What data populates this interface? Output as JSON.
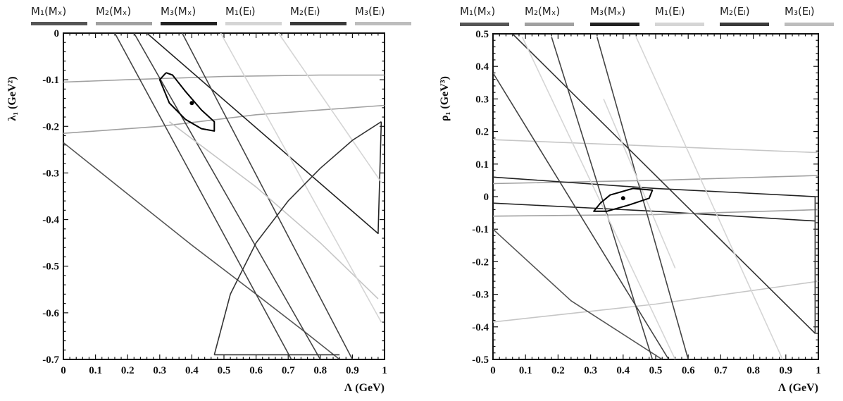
{
  "chart_data": [
    {
      "type": "line",
      "panel": "left",
      "xlabel": "Λ (GeV)",
      "ylabel": "λ₁ (GeV²)",
      "xlim": [
        0,
        1
      ],
      "ylim": [
        -0.7,
        0
      ],
      "xticks": [
        "0",
        "0.1",
        "0.2",
        "0.3",
        "0.4",
        "0.5",
        "0.6",
        "0.7",
        "0.8",
        "0.9",
        "1"
      ],
      "xtick_values": [
        0,
        0.1,
        0.2,
        0.3,
        0.4,
        0.5,
        0.6,
        0.7,
        0.8,
        0.9,
        1
      ],
      "yticks": [
        "0",
        "-0.1",
        "-0.2",
        "-0.3",
        "-0.4",
        "-0.5",
        "-0.6",
        "-0.7"
      ],
      "ytick_values": [
        0,
        -0.1,
        -0.2,
        -0.3,
        -0.4,
        -0.5,
        -0.6,
        -0.7
      ],
      "grid": false,
      "legend": [
        {
          "label": "M₁(Mₓ)",
          "color": "#555555"
        },
        {
          "label": "M₂(Mₓ)",
          "color": "#a0a0a0"
        },
        {
          "label": "M₃(Mₓ)",
          "color": "#222222"
        },
        {
          "label": "M₁(Eₗ)",
          "color": "#d5d5d5"
        },
        {
          "label": "M₂(Eₗ)",
          "color": "#3a3a3a"
        },
        {
          "label": "M₃(Eₗ)",
          "color": "#bdbdbd"
        }
      ],
      "central_point": {
        "x": 0.4,
        "y": -0.15
      },
      "ellipse": [
        [
          0.32,
          -0.085
        ],
        [
          0.3,
          -0.1
        ],
        [
          0.33,
          -0.15
        ],
        [
          0.38,
          -0.185
        ],
        [
          0.43,
          -0.205
        ],
        [
          0.47,
          -0.21
        ],
        [
          0.47,
          -0.19
        ],
        [
          0.43,
          -0.165
        ],
        [
          0.38,
          -0.125
        ],
        [
          0.34,
          -0.09
        ],
        [
          0.32,
          -0.085
        ]
      ],
      "series": [
        {
          "color": "#a0a0a0",
          "points": [
            [
              0,
              -0.105
            ],
            [
              0.2,
              -0.1
            ],
            [
              0.5,
              -0.093
            ],
            [
              0.8,
              -0.09
            ],
            [
              1,
              -0.09
            ]
          ]
        },
        {
          "color": "#a0a0a0",
          "points": [
            [
              0,
              -0.215
            ],
            [
              0.3,
              -0.2
            ],
            [
              0.6,
              -0.175
            ],
            [
              0.8,
              -0.165
            ],
            [
              1,
              -0.155
            ]
          ]
        },
        {
          "color": "#555555",
          "points": [
            [
              0,
              -0.235
            ],
            [
              0.2,
              -0.345
            ],
            [
              0.4,
              -0.455
            ],
            [
              0.6,
              -0.56
            ],
            [
              0.75,
              -0.64
            ],
            [
              0.86,
              -0.7
            ]
          ]
        },
        {
          "color": "#444444",
          "points": [
            [
              0.22,
              0
            ],
            [
              0.8,
              -0.7
            ]
          ]
        },
        {
          "color": "#444444",
          "points": [
            [
              0.16,
              0
            ],
            [
              0.71,
              -0.7
            ]
          ]
        },
        {
          "color": "#222222",
          "points": [
            [
              0.26,
              0
            ],
            [
              0.98,
              -0.43
            ],
            [
              0.99,
              -0.19
            ]
          ]
        },
        {
          "color": "#444444",
          "points": [
            [
              0.37,
              0
            ],
            [
              0.9,
              -0.7
            ]
          ]
        },
        {
          "color": "#c6c6c6",
          "points": [
            [
              0.33,
              -0.19
            ],
            [
              0.6,
              -0.33
            ],
            [
              0.8,
              -0.45
            ],
            [
              0.98,
              -0.57
            ]
          ]
        },
        {
          "color": "#d5d5d5",
          "points": [
            [
              0.49,
              0
            ],
            [
              0.99,
              -0.62
            ]
          ]
        },
        {
          "color": "#d5d5d5",
          "points": [
            [
              0.67,
              0
            ],
            [
              0.99,
              -0.32
            ]
          ]
        },
        {
          "color": "#333333",
          "points": [
            [
              0.47,
              -0.69
            ],
            [
              0.52,
              -0.56
            ],
            [
              0.6,
              -0.45
            ],
            [
              0.7,
              -0.36
            ],
            [
              0.8,
              -0.29
            ],
            [
              0.9,
              -0.23
            ],
            [
              0.99,
              -0.19
            ]
          ]
        },
        {
          "color": "#333333",
          "points": [
            [
              0.47,
              -0.69
            ],
            [
              0.86,
              -0.69
            ]
          ]
        }
      ]
    },
    {
      "type": "line",
      "panel": "right",
      "xlabel": "Λ (GeV)",
      "ylabel": "ρ₁ (GeV³)",
      "xlim": [
        0,
        1
      ],
      "ylim": [
        -0.5,
        0.5
      ],
      "xticks": [
        "0",
        "0.1",
        "0.2",
        "0.3",
        "0.4",
        "0.5",
        "0.6",
        "0.7",
        "0.8",
        "0.9",
        "1"
      ],
      "xtick_values": [
        0,
        0.1,
        0.2,
        0.3,
        0.4,
        0.5,
        0.6,
        0.7,
        0.8,
        0.9,
        1
      ],
      "yticks": [
        "0.5",
        "0.4",
        "0.3",
        "0.2",
        "0.1",
        "0",
        "-0.1",
        "-0.2",
        "-0.3",
        "-0.4",
        "-0.5"
      ],
      "ytick_values": [
        0.5,
        0.4,
        0.3,
        0.2,
        0.1,
        0,
        -0.1,
        -0.2,
        -0.3,
        -0.4,
        -0.5
      ],
      "grid": false,
      "legend": [
        {
          "label": "M₁(Mₓ)",
          "color": "#555555"
        },
        {
          "label": "M₂(Mₓ)",
          "color": "#a0a0a0"
        },
        {
          "label": "M₃(Mₓ)",
          "color": "#222222"
        },
        {
          "label": "M₁(Eₗ)",
          "color": "#d5d5d5"
        },
        {
          "label": "M₂(Eₗ)",
          "color": "#3a3a3a"
        },
        {
          "label": "M₃(Eₗ)",
          "color": "#bdbdbd"
        }
      ],
      "central_point": {
        "x": 0.4,
        "y": -0.005
      },
      "ellipse": [
        [
          0.33,
          -0.02
        ],
        [
          0.31,
          -0.045
        ],
        [
          0.35,
          -0.045
        ],
        [
          0.42,
          -0.025
        ],
        [
          0.48,
          -0.005
        ],
        [
          0.49,
          0.02
        ],
        [
          0.43,
          0.025
        ],
        [
          0.36,
          0.005
        ],
        [
          0.33,
          -0.02
        ]
      ],
      "series": [
        {
          "color": "#c6c6c6",
          "points": [
            [
              0,
              0.175
            ],
            [
              0.5,
              0.155
            ],
            [
              1,
              0.135
            ]
          ]
        },
        {
          "color": "#a0a0a0",
          "points": [
            [
              0,
              0.04
            ],
            [
              0.5,
              0.05
            ],
            [
              1,
              0.065
            ]
          ]
        },
        {
          "color": "#222222",
          "points": [
            [
              0,
              0.06
            ],
            [
              0.5,
              0.025
            ],
            [
              0.99,
              0.0
            ]
          ]
        },
        {
          "color": "#222222",
          "points": [
            [
              0,
              -0.02
            ],
            [
              0.5,
              -0.045
            ],
            [
              0.99,
              -0.075
            ]
          ]
        },
        {
          "color": "#a0a0a0",
          "points": [
            [
              0,
              -0.06
            ],
            [
              0.5,
              -0.055
            ],
            [
              1,
              -0.04
            ]
          ]
        },
        {
          "color": "#c6c6c6",
          "points": [
            [
              0,
              -0.385
            ],
            [
              0.5,
              -0.33
            ],
            [
              1,
              -0.26
            ]
          ]
        },
        {
          "color": "#444444",
          "points": [
            [
              0,
              0.38
            ],
            [
              0.54,
              -0.5
            ]
          ]
        },
        {
          "color": "#555555",
          "points": [
            [
              0,
              -0.1
            ],
            [
              0.24,
              -0.32
            ],
            [
              0.52,
              -0.5
            ]
          ]
        },
        {
          "color": "#333333",
          "points": [
            [
              0.06,
              0.5
            ],
            [
              0.99,
              -0.42
            ],
            [
              0.99,
              0.0
            ]
          ]
        },
        {
          "color": "#444444",
          "points": [
            [
              0.18,
              0.49
            ],
            [
              0.49,
              -0.5
            ]
          ]
        },
        {
          "color": "#444444",
          "points": [
            [
              0.32,
              0.49
            ],
            [
              0.6,
              -0.5
            ]
          ]
        },
        {
          "color": "#d5d5d5",
          "points": [
            [
              0.09,
              0.49
            ],
            [
              0.56,
              -0.5
            ]
          ]
        },
        {
          "color": "#d5d5d5",
          "points": [
            [
              0.44,
              0.49
            ],
            [
              0.89,
              -0.5
            ]
          ]
        },
        {
          "color": "#d5d5d5",
          "points": [
            [
              0.34,
              0.3
            ],
            [
              0.45,
              0.04
            ],
            [
              0.56,
              -0.22
            ]
          ]
        }
      ]
    }
  ]
}
